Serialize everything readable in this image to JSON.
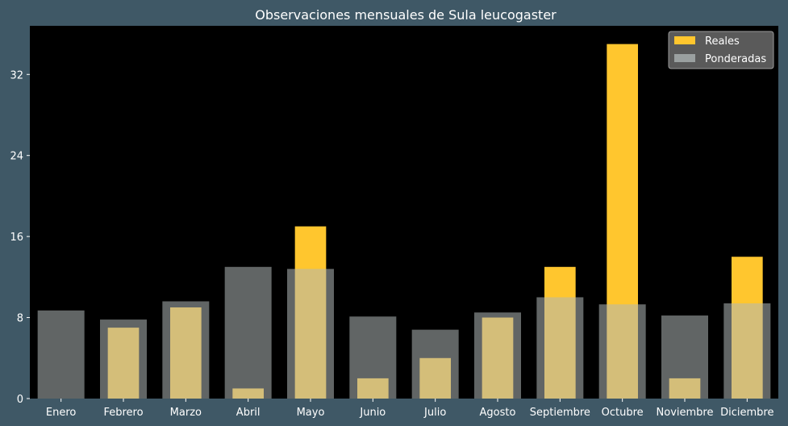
{
  "chart_data": {
    "type": "bar",
    "title": "Observaciones mensuales de Sula leucogaster",
    "xlabel": "",
    "ylabel": "",
    "categories": [
      "Enero",
      "Febrero",
      "Marzo",
      "Abril",
      "Mayo",
      "Junio",
      "Julio",
      "Agosto",
      "Septiembre",
      "Octubre",
      "Noviembre",
      "Diciembre"
    ],
    "series": [
      {
        "name": "Reales",
        "color": "#ffc62e",
        "values": [
          0,
          7,
          9,
          1,
          17,
          2,
          4,
          8,
          13,
          35,
          2,
          14
        ]
      },
      {
        "name": "Ponderadas",
        "color": "#b0b8b8",
        "opacity": 0.55,
        "values": [
          8.7,
          7.8,
          9.6,
          13.0,
          12.8,
          8.1,
          6.8,
          8.5,
          10.0,
          9.3,
          8.2,
          9.4
        ]
      }
    ],
    "yticks": [
      0,
      8,
      16,
      24,
      32
    ],
    "ylim": [
      0,
      36.8
    ],
    "grid": false,
    "legend": "top-right",
    "background": "#000000",
    "figure_background": "#3f5866"
  }
}
